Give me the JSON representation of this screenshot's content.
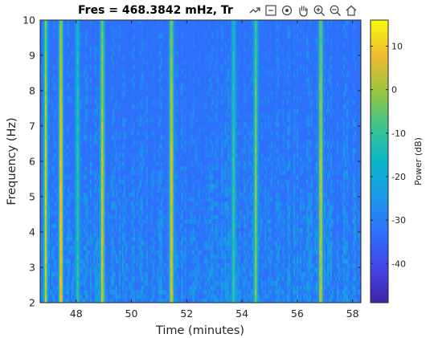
{
  "chart_data": {
    "type": "heatmap",
    "title": "Fres = 468.3842 mHz, Tr",
    "xlabel": "Time (minutes)",
    "ylabel": "Frequency (Hz)",
    "xlim": [
      46.7,
      58.3
    ],
    "ylim": [
      2,
      10
    ],
    "xticks": [
      "48",
      "50",
      "52",
      "54",
      "56",
      "58"
    ],
    "xtick_values": [
      48,
      50,
      52,
      54,
      56,
      58
    ],
    "yticks": [
      "2",
      "3",
      "4",
      "5",
      "6",
      "7",
      "8",
      "9",
      "10"
    ],
    "ytick_values": [
      2,
      3,
      4,
      5,
      6,
      7,
      8,
      9,
      10
    ],
    "colorbar": {
      "label": "Power (dB)",
      "clim": [
        -49,
        16
      ],
      "ticks": [
        "10",
        "0",
        "-10",
        "-20",
        "-30",
        "-40"
      ],
      "tick_values": [
        10,
        0,
        -10,
        -20,
        -30,
        -40
      ],
      "colormap": "parula"
    },
    "background_level_db": -33,
    "bright_events": [
      {
        "time_min": 46.9,
        "peak_db": 6
      },
      {
        "time_min": 47.45,
        "peak_db": 12
      },
      {
        "time_min": 48.05,
        "peak_db": -10
      },
      {
        "time_min": 48.95,
        "peak_db": 7
      },
      {
        "time_min": 51.45,
        "peak_db": 9
      },
      {
        "time_min": 53.7,
        "peak_db": -8
      },
      {
        "time_min": 54.5,
        "peak_db": 0
      },
      {
        "time_min": 56.85,
        "peak_db": 6
      }
    ]
  },
  "toolbar": {
    "icons": [
      "export-icon",
      "datatip-icon",
      "rotate-icon",
      "pan-icon",
      "zoom-in-icon",
      "zoom-out-icon",
      "home-icon"
    ]
  }
}
